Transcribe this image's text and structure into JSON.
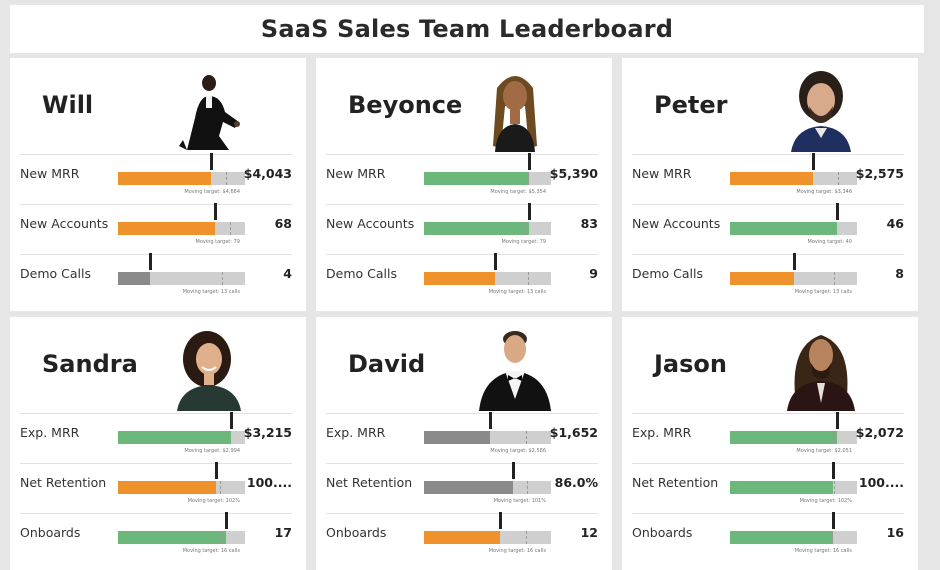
{
  "title": "SaaS Sales Team Leaderboard",
  "colors": {
    "orange": "#f0922c",
    "green": "#6bb87a",
    "gray": "#8a8a8a",
    "track": "#cfcfcf"
  },
  "people": [
    {
      "name": "Will",
      "avatar_icon": "person-tuxedo-dancing-icon",
      "metrics": [
        {
          "label": "New MRR",
          "value": "$4,043",
          "target_label": "Moving target: $4,684",
          "progress": 0.73,
          "target_pct": 0.85,
          "status": "orange"
        },
        {
          "label": "New Accounts",
          "value": "68",
          "target_label": "Moving target: 79",
          "progress": 0.76,
          "target_pct": 0.88,
          "status": "orange"
        },
        {
          "label": "Demo Calls",
          "value": "4",
          "target_label": "Moving target: 13 calls",
          "progress": 0.25,
          "target_pct": 0.82,
          "status": "gray"
        }
      ]
    },
    {
      "name": "Beyonce",
      "avatar_icon": "person-long-braids-icon",
      "metrics": [
        {
          "label": "New MRR",
          "value": "$5,390",
          "target_label": "Moving target: $5,354",
          "progress": 0.83,
          "target_pct": 0.82,
          "status": "green"
        },
        {
          "label": "New Accounts",
          "value": "83",
          "target_label": "Moving target: 79",
          "progress": 0.83,
          "target_pct": 0.79,
          "status": "green"
        },
        {
          "label": "Demo Calls",
          "value": "9",
          "target_label": "Moving target: 13 calls",
          "progress": 0.56,
          "target_pct": 0.82,
          "status": "orange"
        }
      ]
    },
    {
      "name": "Peter",
      "avatar_icon": "person-curly-beard-icon",
      "metrics": [
        {
          "label": "New MRR",
          "value": "$2,575",
          "target_label": "Moving target: $3,346",
          "progress": 0.65,
          "target_pct": 0.85,
          "status": "orange"
        },
        {
          "label": "New Accounts",
          "value": "46",
          "target_label": "Moving target: 40",
          "progress": 0.84,
          "target_pct": 0.73,
          "status": "green"
        },
        {
          "label": "Demo Calls",
          "value": "8",
          "target_label": "Moving target: 13 calls",
          "progress": 0.5,
          "target_pct": 0.82,
          "status": "orange"
        }
      ]
    },
    {
      "name": "Sandra",
      "avatar_icon": "person-curly-hair-smiling-icon",
      "metrics": [
        {
          "label": "Exp. MRR",
          "value": "$3,215",
          "target_label": "Moving target: $2,994",
          "progress": 0.89,
          "target_pct": 0.83,
          "status": "green"
        },
        {
          "label": "Net Retention",
          "value": "100....",
          "target_label": "Moving target: 102%",
          "progress": 0.77,
          "target_pct": 0.8,
          "status": "orange"
        },
        {
          "label": "Onboards",
          "value": "17",
          "target_label": "Moving target: 16 calls",
          "progress": 0.85,
          "target_pct": 0.8,
          "status": "green"
        }
      ]
    },
    {
      "name": "David",
      "avatar_icon": "person-tuxedo-bowtie-icon",
      "metrics": [
        {
          "label": "Exp. MRR",
          "value": "$1,652",
          "target_label": "Moving target: $2,586",
          "progress": 0.52,
          "target_pct": 0.8,
          "status": "gray"
        },
        {
          "label": "Net Retention",
          "value": "86.0%",
          "target_label": "Moving target: 101%",
          "progress": 0.7,
          "target_pct": 0.81,
          "status": "gray"
        },
        {
          "label": "Onboards",
          "value": "12",
          "target_label": "Moving target: 16 calls",
          "progress": 0.6,
          "target_pct": 0.8,
          "status": "orange"
        }
      ]
    },
    {
      "name": "Jason",
      "avatar_icon": "person-long-wavy-hair-icon",
      "metrics": [
        {
          "label": "Exp. MRR",
          "value": "$2,072",
          "target_label": "Moving target: $2,051",
          "progress": 0.84,
          "target_pct": 0.82,
          "status": "green"
        },
        {
          "label": "Net Retention",
          "value": "100....",
          "target_label": "Moving target: 102%",
          "progress": 0.81,
          "target_pct": 0.82,
          "status": "green"
        },
        {
          "label": "Onboards",
          "value": "16",
          "target_label": "Moving target: 16 calls",
          "progress": 0.81,
          "target_pct": 0.8,
          "status": "green"
        }
      ]
    }
  ]
}
